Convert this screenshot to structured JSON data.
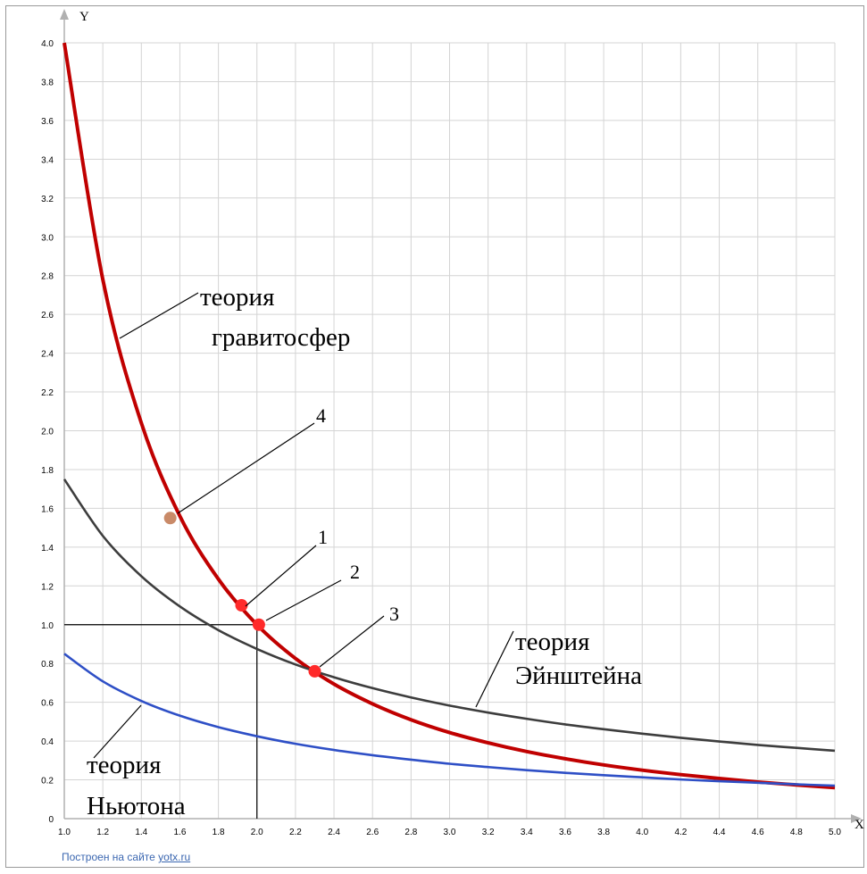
{
  "chart_data": {
    "type": "line",
    "xlabel": "X",
    "ylabel": "Y",
    "xlim": [
      1.0,
      5.0
    ],
    "ylim": [
      0,
      4.0
    ],
    "grid": true,
    "x_ticks": [
      "1.0",
      "1.2",
      "1.4",
      "1.6",
      "1.8",
      "2.0",
      "2.2",
      "2.4",
      "2.6",
      "2.8",
      "3.0",
      "3.2",
      "3.4",
      "3.6",
      "3.8",
      "4.0",
      "4.2",
      "4.4",
      "4.6",
      "4.8",
      "5.0"
    ],
    "y_ticks": [
      "0",
      "0.2",
      "0.4",
      "0.6",
      "0.8",
      "1.0",
      "1.2",
      "1.4",
      "1.6",
      "1.8",
      "2.0",
      "2.2",
      "2.4",
      "2.6",
      "2.8",
      "3.0",
      "3.2",
      "3.4",
      "3.6",
      "3.8",
      "4.0"
    ],
    "series": [
      {
        "id": "gravitosphere",
        "color": "#c00000",
        "x": [
          1.0,
          1.2,
          1.4,
          1.6,
          1.8,
          2.0,
          2.2,
          2.4,
          2.6,
          2.8,
          3.0,
          3.2,
          3.4,
          3.6,
          3.8,
          4.0,
          4.2,
          4.4,
          4.6,
          4.8,
          5.0
        ],
        "y": [
          4.0,
          2.78,
          2.04,
          1.56,
          1.235,
          1.0,
          0.826,
          0.694,
          0.592,
          0.51,
          0.444,
          0.391,
          0.346,
          0.309,
          0.277,
          0.25,
          0.227,
          0.207,
          0.189,
          0.174,
          0.16
        ]
      },
      {
        "id": "einstein",
        "color": "#3d3d3d",
        "x": [
          1.0,
          1.2,
          1.4,
          1.6,
          1.8,
          2.0,
          2.2,
          2.4,
          2.6,
          2.8,
          3.0,
          3.2,
          3.4,
          3.6,
          3.8,
          4.0,
          4.2,
          4.4,
          4.6,
          4.8,
          5.0
        ],
        "y": [
          1.75,
          1.458,
          1.25,
          1.094,
          0.972,
          0.875,
          0.795,
          0.729,
          0.673,
          0.625,
          0.583,
          0.547,
          0.515,
          0.486,
          0.461,
          0.438,
          0.417,
          0.398,
          0.38,
          0.365,
          0.35
        ]
      },
      {
        "id": "newton",
        "color": "#2e4fc6",
        "x": [
          1.0,
          1.2,
          1.4,
          1.6,
          1.8,
          2.0,
          2.2,
          2.4,
          2.6,
          2.8,
          3.0,
          3.2,
          3.4,
          3.6,
          3.8,
          4.0,
          4.2,
          4.4,
          4.6,
          4.8,
          5.0
        ],
        "y": [
          0.85,
          0.708,
          0.607,
          0.531,
          0.472,
          0.425,
          0.386,
          0.354,
          0.327,
          0.304,
          0.283,
          0.266,
          0.25,
          0.236,
          0.224,
          0.213,
          0.202,
          0.193,
          0.185,
          0.177,
          0.17
        ]
      }
    ],
    "points": [
      {
        "label": "1",
        "x": 1.92,
        "y": 1.1,
        "color": "#ff2a2a"
      },
      {
        "label": "2",
        "x": 2.01,
        "y": 1.0,
        "color": "#ff2a2a"
      },
      {
        "label": "3",
        "x": 2.3,
        "y": 0.76,
        "color": "#ff2a2a"
      },
      {
        "label": "4",
        "x": 1.55,
        "y": 1.55,
        "color": "#c98a68"
      }
    ],
    "guide_point": {
      "x": 2.0,
      "y": 1.0
    },
    "annotations": {
      "gravitosphere_line1": "теория",
      "gravitosphere_line2": "гравитосфер",
      "einstein_line1": "теория",
      "einstein_line2": "Эйнштейна",
      "newton_line1": "теория",
      "newton_line2": "Ньютона"
    },
    "credit": {
      "prefix": "Построен на сайте ",
      "link": "yotx.ru"
    }
  }
}
